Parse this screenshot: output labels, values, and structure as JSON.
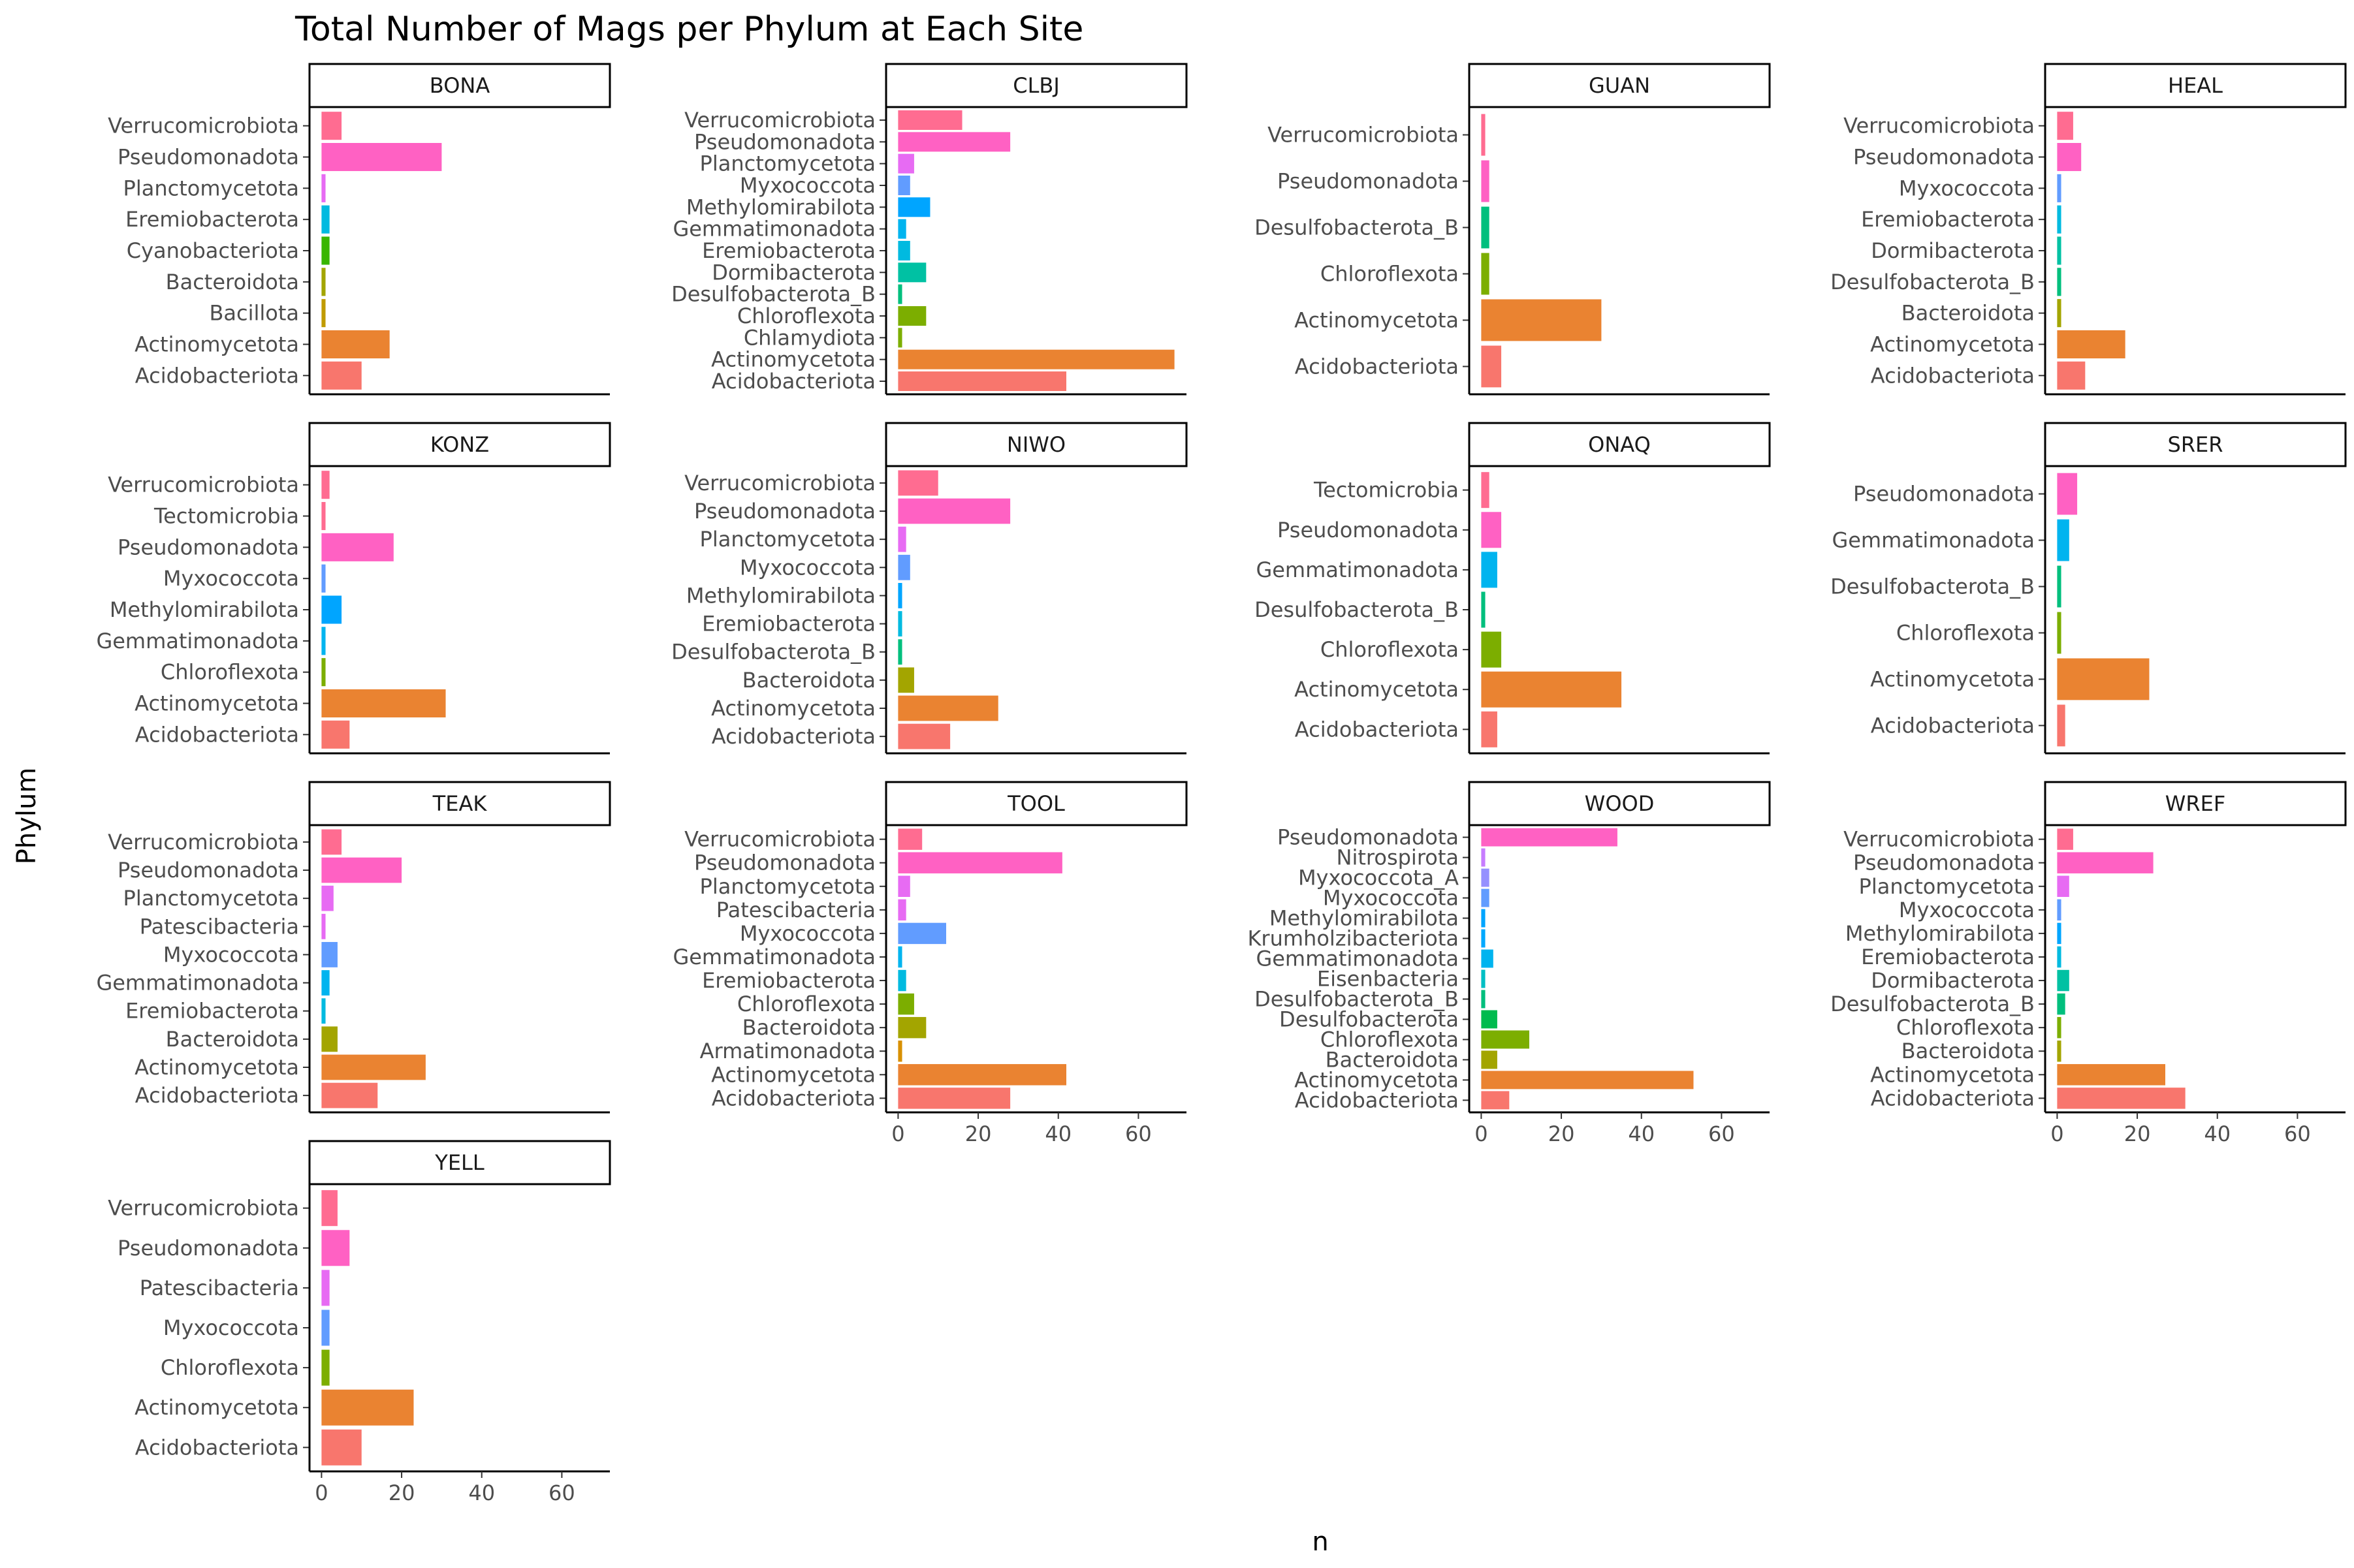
{
  "chart_data": {
    "type": "bar",
    "orientation": "horizontal",
    "title": "Total Number of Mags per Phylum at Each Site",
    "xlabel": "n",
    "ylabel": "Phylum",
    "xlim": [
      -3,
      72
    ],
    "xticks": [
      0,
      20,
      40,
      60
    ],
    "grid": false,
    "legend": "none",
    "facets": [
      {
        "site": "BONA",
        "categories": [
          "Verrucomicrobiota",
          "Pseudomonadota",
          "Planctomycetota",
          "Eremiobacterota",
          "Cyanobacteriota",
          "Bacteroidota",
          "Bacillota",
          "Actinomycetota",
          "Acidobacteriota"
        ],
        "values": [
          5,
          30,
          1,
          2,
          2,
          1,
          1,
          17,
          10
        ]
      },
      {
        "site": "CLBJ",
        "categories": [
          "Verrucomicrobiota",
          "Pseudomonadota",
          "Planctomycetota",
          "Myxococcota",
          "Methylomirabilota",
          "Gemmatimonadota",
          "Eremiobacterota",
          "Dormibacterota",
          "Desulfobacterota_B",
          "Chloroflexota",
          "Chlamydiota",
          "Actinomycetota",
          "Acidobacteriota"
        ],
        "values": [
          16,
          28,
          4,
          3,
          8,
          2,
          3,
          7,
          1,
          7,
          1,
          69,
          42
        ]
      },
      {
        "site": "GUAN",
        "categories": [
          "Verrucomicrobiota",
          "Pseudomonadota",
          "Desulfobacterota_B",
          "Chloroflexota",
          "Actinomycetota",
          "Acidobacteriota"
        ],
        "values": [
          1,
          2,
          2,
          2,
          30,
          5
        ]
      },
      {
        "site": "HEAL",
        "categories": [
          "Verrucomicrobiota",
          "Pseudomonadota",
          "Myxococcota",
          "Eremiobacterota",
          "Dormibacterota",
          "Desulfobacterota_B",
          "Bacteroidota",
          "Actinomycetota",
          "Acidobacteriota"
        ],
        "values": [
          4,
          6,
          1,
          1,
          1,
          1,
          1,
          17,
          7
        ]
      },
      {
        "site": "KONZ",
        "categories": [
          "Verrucomicrobiota",
          "Tectomicrobia",
          "Pseudomonadota",
          "Myxococcota",
          "Methylomirabilota",
          "Gemmatimonadota",
          "Chloroflexota",
          "Actinomycetota",
          "Acidobacteriota"
        ],
        "values": [
          2,
          1,
          18,
          1,
          5,
          1,
          1,
          31,
          7
        ]
      },
      {
        "site": "NIWO",
        "categories": [
          "Verrucomicrobiota",
          "Pseudomonadota",
          "Planctomycetota",
          "Myxococcota",
          "Methylomirabilota",
          "Eremiobacterota",
          "Desulfobacterota_B",
          "Bacteroidota",
          "Actinomycetota",
          "Acidobacteriota"
        ],
        "values": [
          10,
          28,
          2,
          3,
          1,
          1,
          1,
          4,
          25,
          13
        ]
      },
      {
        "site": "ONAQ",
        "categories": [
          "Tectomicrobia",
          "Pseudomonadota",
          "Gemmatimonadota",
          "Desulfobacterota_B",
          "Chloroflexota",
          "Actinomycetota",
          "Acidobacteriota"
        ],
        "values": [
          2,
          5,
          4,
          1,
          5,
          35,
          4
        ]
      },
      {
        "site": "SRER",
        "categories": [
          "Pseudomonadota",
          "Gemmatimonadota",
          "Desulfobacterota_B",
          "Chloroflexota",
          "Actinomycetota",
          "Acidobacteriota"
        ],
        "values": [
          5,
          3,
          1,
          1,
          23,
          2
        ]
      },
      {
        "site": "TEAK",
        "categories": [
          "Verrucomicrobiota",
          "Pseudomonadota",
          "Planctomycetota",
          "Patescibacteria",
          "Myxococcota",
          "Gemmatimonadota",
          "Eremiobacterota",
          "Bacteroidota",
          "Actinomycetota",
          "Acidobacteriota"
        ],
        "values": [
          5,
          20,
          3,
          1,
          4,
          2,
          1,
          4,
          26,
          14
        ]
      },
      {
        "site": "TOOL",
        "categories": [
          "Verrucomicrobiota",
          "Pseudomonadota",
          "Planctomycetota",
          "Patescibacteria",
          "Myxococcota",
          "Gemmatimonadota",
          "Eremiobacterota",
          "Chloroflexota",
          "Bacteroidota",
          "Armatimonadota",
          "Actinomycetota",
          "Acidobacteriota"
        ],
        "values": [
          6,
          41,
          3,
          2,
          12,
          1,
          2,
          4,
          7,
          1,
          42,
          28
        ]
      },
      {
        "site": "WOOD",
        "categories": [
          "Pseudomonadota",
          "Nitrospirota",
          "Myxococcota_A",
          "Myxococcota",
          "Methylomirabilota",
          "Krumholzibacteriota",
          "Gemmatimonadota",
          "Eisenbacteria",
          "Desulfobacterota_B",
          "Desulfobacterota",
          "Chloroflexota",
          "Bacteroidota",
          "Actinomycetota",
          "Acidobacteriota"
        ],
        "values": [
          34,
          1,
          2,
          2,
          1,
          1,
          3,
          1,
          1,
          4,
          12,
          4,
          53,
          7
        ]
      },
      {
        "site": "WREF",
        "categories": [
          "Verrucomicrobiota",
          "Pseudomonadota",
          "Planctomycetota",
          "Myxococcota",
          "Methylomirabilota",
          "Eremiobacterota",
          "Dormibacterota",
          "Desulfobacterota_B",
          "Chloroflexota",
          "Bacteroidota",
          "Actinomycetota",
          "Acidobacteriota"
        ],
        "values": [
          4,
          24,
          3,
          1,
          1,
          1,
          3,
          2,
          1,
          1,
          27,
          32
        ]
      },
      {
        "site": "YELL",
        "categories": [
          "Verrucomicrobiota",
          "Pseudomonadota",
          "Patescibacteria",
          "Myxococcota",
          "Chloroflexota",
          "Actinomycetota",
          "Acidobacteriota"
        ],
        "values": [
          4,
          7,
          2,
          2,
          2,
          23,
          10
        ]
      }
    ],
    "phylum_colors": {
      "Acidobacteriota": "#F8766D",
      "Actinomycetota": "#EA8331",
      "Armatimonadota": "#D89000",
      "Bacillota": "#C09B00",
      "Bacteroidota": "#A3A500",
      "Chlamydiota": "#7CAE00",
      "Chloroflexota": "#7CAE00",
      "Cyanobacteriota": "#39B600",
      "Desulfobacterota": "#00BB4E",
      "Desulfobacterota_B": "#00BF7D",
      "Dormibacterota": "#00C1A3",
      "Eisenbacteria": "#00BFC4",
      "Eremiobacterota": "#00BAE0",
      "Gemmatimonadota": "#00B4EF",
      "Krumholzibacteriota": "#00A9FF",
      "Methylomirabilota": "#00A5FF",
      "Myxococcota": "#619CFF",
      "Myxococcota_A": "#9590FF",
      "Nitrospirota": "#C77CFF",
      "Patescibacteria": "#E76BF3",
      "Planctomycetota": "#E76BF3",
      "Pseudomonadota": "#FF61C3",
      "Tectomicrobia": "#FF6C91",
      "Verrucomicrobiota": "#FF6C91"
    }
  }
}
